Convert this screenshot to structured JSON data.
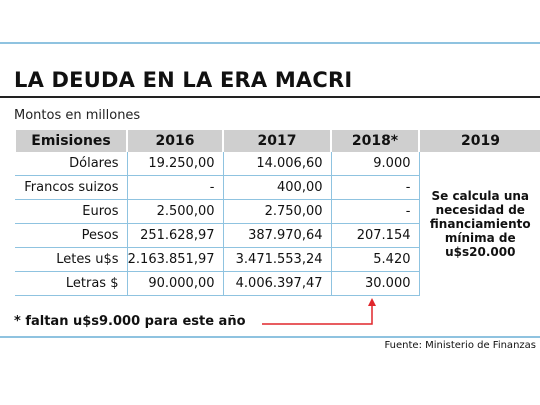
{
  "header": {
    "title": "LA DEUDA EN LA ERA MACRI",
    "subtitle": "Montos en millones"
  },
  "table": {
    "headers": [
      "Emisiones",
      "2016",
      "2017",
      "2018*",
      "2019"
    ],
    "rows": [
      [
        "Dólares",
        "19.250,00",
        "14.006,60",
        "9.000"
      ],
      [
        "Francos suizos",
        "-",
        "400,00",
        "-"
      ],
      [
        "Euros",
        "2.500,00",
        "2.750,00",
        "-"
      ],
      [
        "Pesos",
        "251.628,97",
        "387.970,64",
        "207.154"
      ],
      [
        "Letes u$s",
        "2.163.851,97",
        "3.471.553,24",
        "5.420"
      ],
      [
        "Letras $",
        "90.000,00",
        "4.006.397,47",
        "30.000"
      ]
    ],
    "note_2019": "Se calcula una necesidad de financiamiento mínima de u$s20.000"
  },
  "footnote": "* faltan u$s9.000 para este año",
  "source": "Fuente: Ministerio de Finanzas"
}
